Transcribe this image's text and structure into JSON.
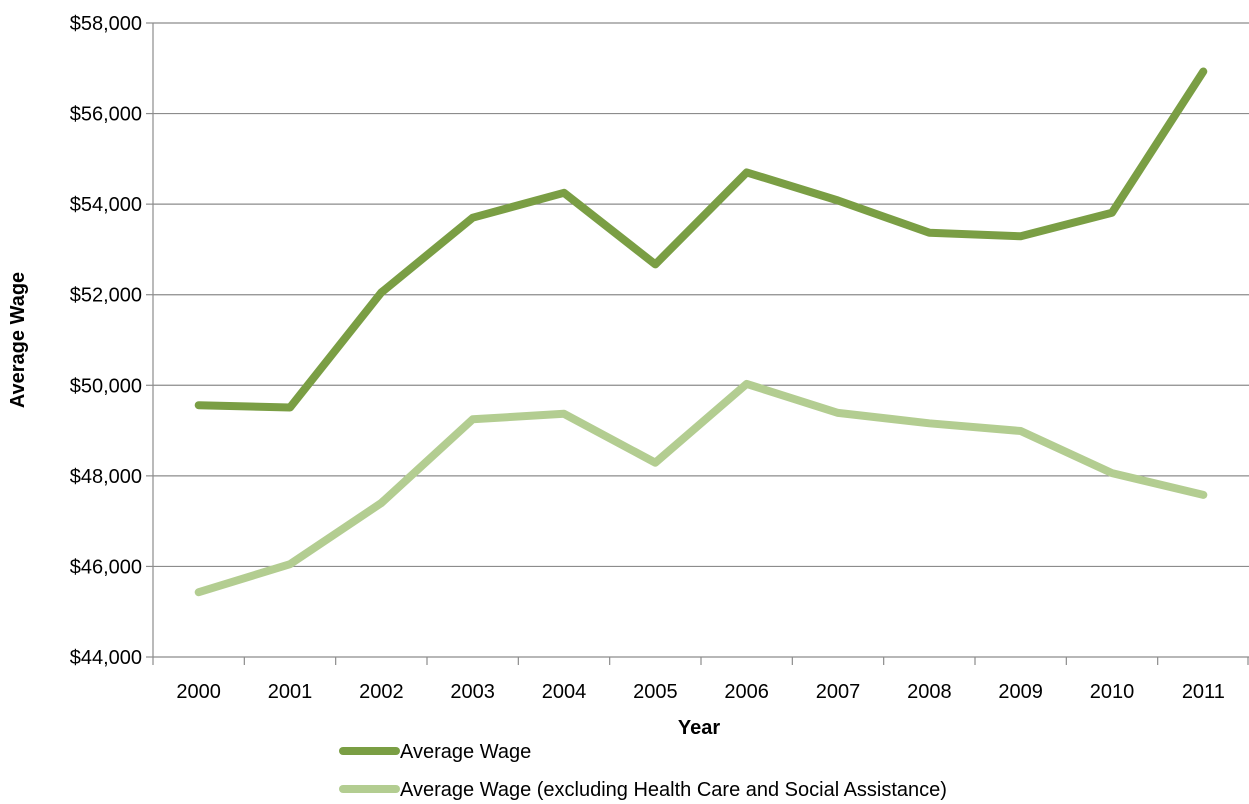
{
  "chart_data": {
    "type": "line",
    "title": "",
    "xlabel": "Year",
    "ylabel": "Average Wage",
    "categories": [
      "2000",
      "2001",
      "2002",
      "2003",
      "2004",
      "2005",
      "2006",
      "2007",
      "2008",
      "2009",
      "2010",
      "2011"
    ],
    "ylim": [
      44000,
      58000
    ],
    "yticks": [
      44000,
      46000,
      48000,
      50000,
      52000,
      54000,
      56000,
      58000
    ],
    "ytick_labels": [
      "$44,000",
      "$46,000",
      "$48,000",
      "$50,000",
      "$52,000",
      "$54,000",
      "$56,000",
      "$58,000"
    ],
    "grid": true,
    "legend_position": "bottom",
    "series": [
      {
        "name": "Average Wage",
        "color": "#7a9e44",
        "values": [
          49560,
          49510,
          52050,
          53700,
          54250,
          52670,
          54700,
          54080,
          53370,
          53290,
          53810,
          56930
        ]
      },
      {
        "name": "Average Wage (excluding Health Care and Social Assistance)",
        "color": "#b3cd91",
        "values": [
          45430,
          46050,
          47400,
          49250,
          49370,
          48290,
          50030,
          49390,
          49160,
          48990,
          48060,
          47580
        ]
      }
    ]
  }
}
